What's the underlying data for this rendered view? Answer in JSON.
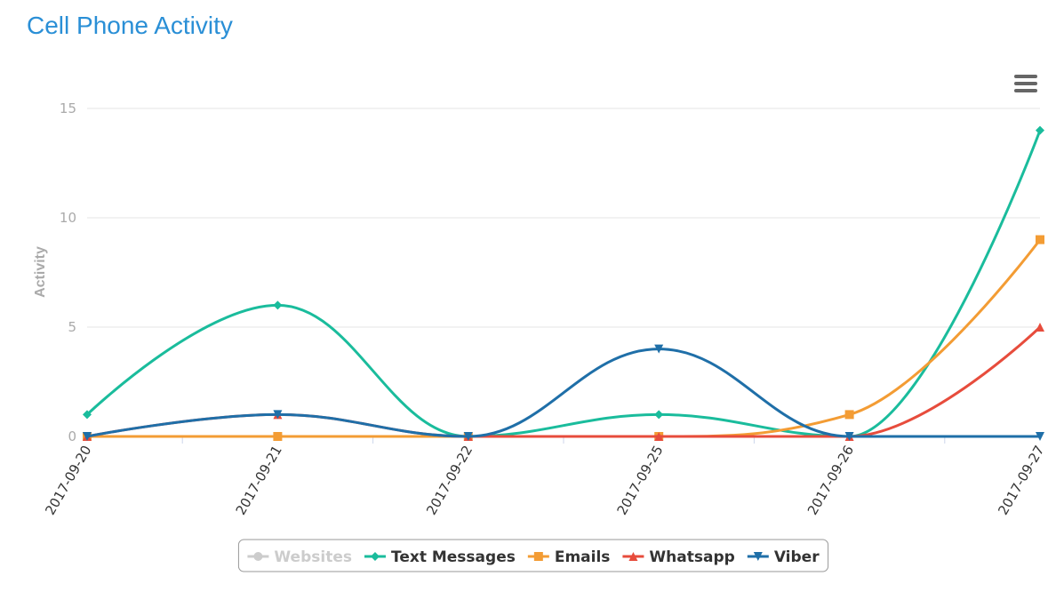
{
  "chart_data": {
    "type": "spline",
    "title": "Cell Phone Activity",
    "y_label": "Activity",
    "categories": [
      "2017-09-20",
      "2017-09-21",
      "2017-09-22",
      "2017-09-25",
      "2017-09-26",
      "2017-09-27"
    ],
    "series": [
      {
        "name": "Websites",
        "color": "#cccccc",
        "visible": false,
        "marker": "circle"
      },
      {
        "name": "Text Messages",
        "color": "#1abc9c",
        "marker": "diamond",
        "values": [
          1,
          6,
          0,
          1,
          0,
          14
        ]
      },
      {
        "name": "Emails",
        "color": "#f39c34",
        "marker": "square",
        "values": [
          0,
          0,
          0,
          0,
          1,
          9
        ]
      },
      {
        "name": "Whatsapp",
        "color": "#e74c3c",
        "marker": "triangle",
        "values": [
          0,
          1,
          0,
          0,
          0,
          5
        ]
      },
      {
        "name": "Viber",
        "color": "#1f6fa8",
        "marker": "triangle-down",
        "values": [
          0,
          1,
          0,
          4,
          0,
          0
        ]
      }
    ],
    "ylim": [
      0,
      15
    ],
    "yticks": [
      0,
      5,
      10,
      15
    ],
    "grid": true,
    "legend": "bottom"
  }
}
